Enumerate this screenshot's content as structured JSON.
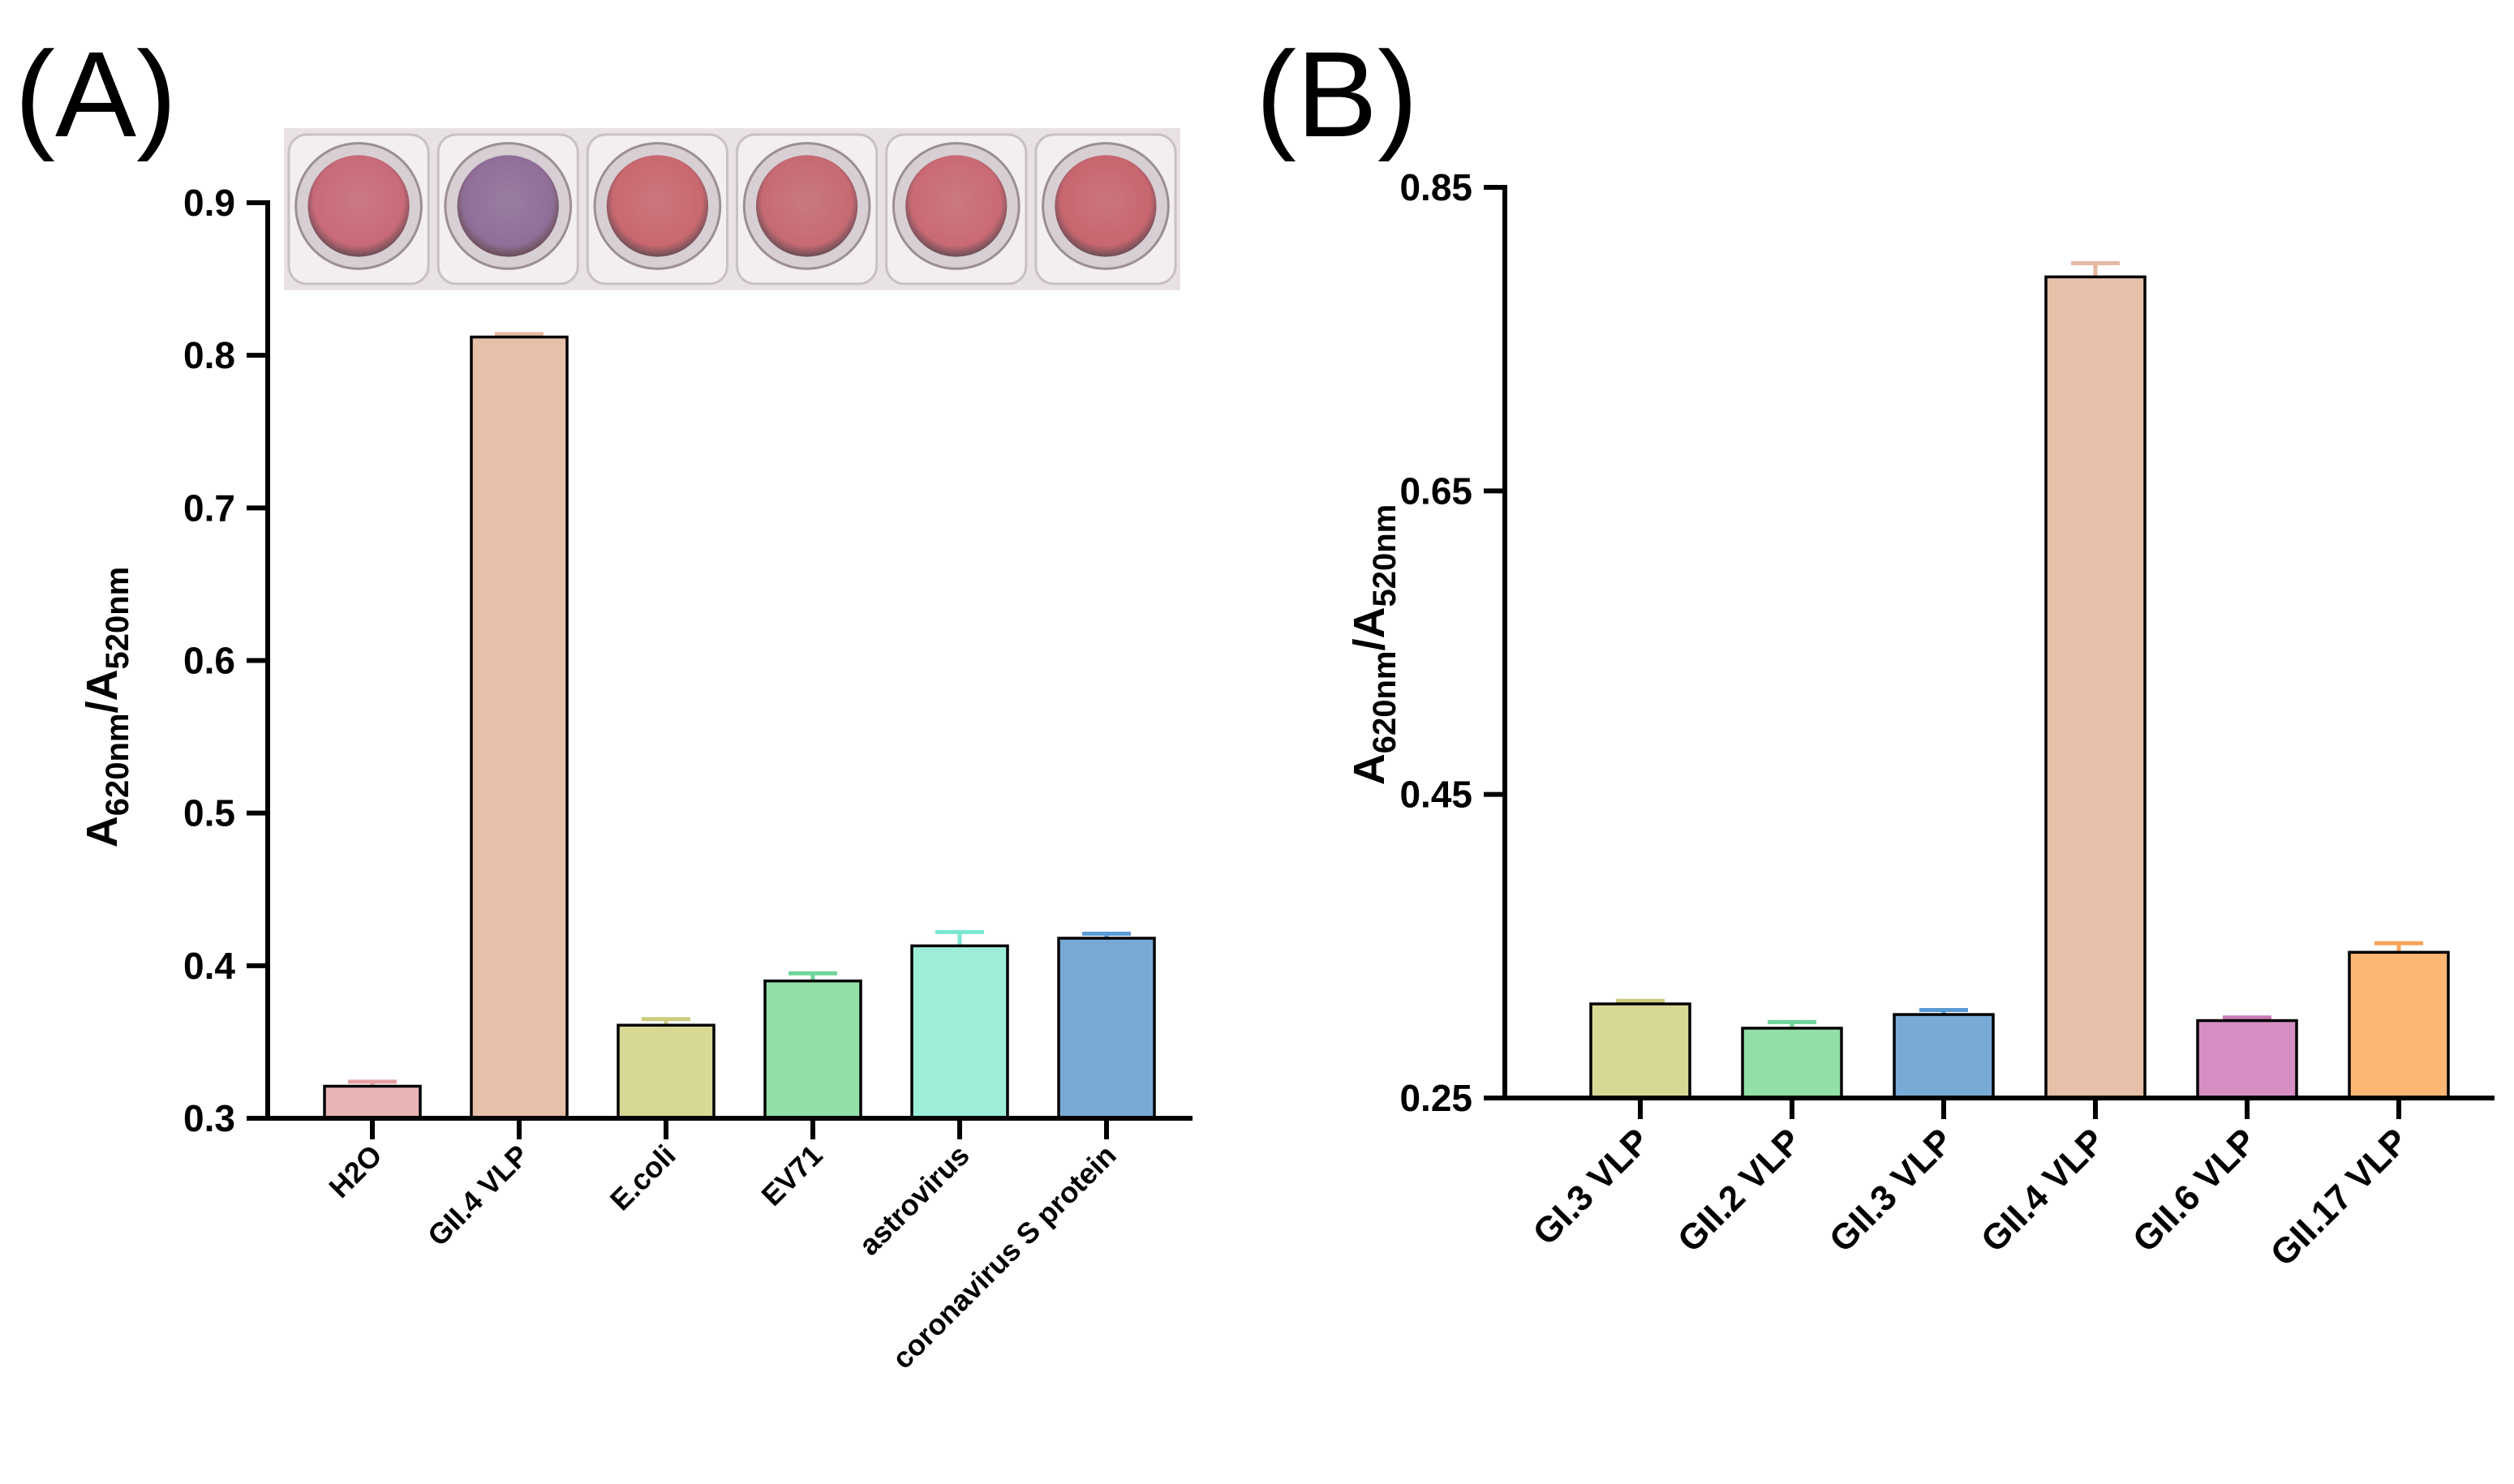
{
  "chart_data": [
    {
      "panel": "(A)",
      "type": "bar",
      "ylabel": {
        "main": "A",
        "sub1": "620nm",
        "slash": "/A",
        "sub2": "520nm"
      },
      "ylim": [
        0.3,
        0.9
      ],
      "yticks": [
        "0.3",
        "0.4",
        "0.5",
        "0.6",
        "0.7",
        "0.8",
        "0.9"
      ],
      "categories": [
        "H2O",
        "GII.4 VLP",
        "E.coli",
        "EV71",
        "astrovirus",
        "coronavirus S protein"
      ],
      "values": [
        0.321,
        0.812,
        0.361,
        0.39,
        0.413,
        0.418
      ],
      "errors": [
        0.003,
        0.002,
        0.004,
        0.005,
        0.009,
        0.003
      ],
      "colors": [
        "#e8b4b5",
        "#e6c0a8",
        "#d8d896",
        "#93dfa8",
        "#9deed9",
        "#79aad6"
      ],
      "error_colors": [
        "#e3a0a3",
        "#e6b8a1",
        "#cccc7e",
        "#6dd59a",
        "#7be7d3",
        "#5b9bd5"
      ],
      "inset": "photo of six plate wells: pink, purple, pink, pink, pink, pink",
      "well_colors": [
        "#c96a78",
        "#8f6f98",
        "#c9686f",
        "#c76a72",
        "#c96a74",
        "#c8666f"
      ]
    },
    {
      "panel": "(B)",
      "type": "bar",
      "ylabel": {
        "main": "A",
        "sub1": "620nm",
        "slash": "/A",
        "sub2": "520nm"
      },
      "ylim": [
        0.25,
        0.85
      ],
      "yticks": [
        "0.25",
        "0.45",
        "0.65",
        "0.85"
      ],
      "categories": [
        "GI.3 VLP",
        "GII.2 VLP",
        "GII.3 VLP",
        "GII.4 VLP",
        "GII.6 VLP",
        "GII.17 VLP"
      ],
      "values": [
        0.312,
        0.296,
        0.305,
        0.791,
        0.301,
        0.346
      ],
      "errors": [
        0.002,
        0.004,
        0.003,
        0.009,
        0.002,
        0.006
      ],
      "colors": [
        "#d8d896",
        "#93dfa8",
        "#79aad6",
        "#e6c0a8",
        "#d68fc3",
        "#fdb574"
      ],
      "error_colors": [
        "#cccc7e",
        "#6dd59a",
        "#5b9bd5",
        "#e6b8a1",
        "#c97cb4",
        "#f9a35a"
      ]
    }
  ]
}
